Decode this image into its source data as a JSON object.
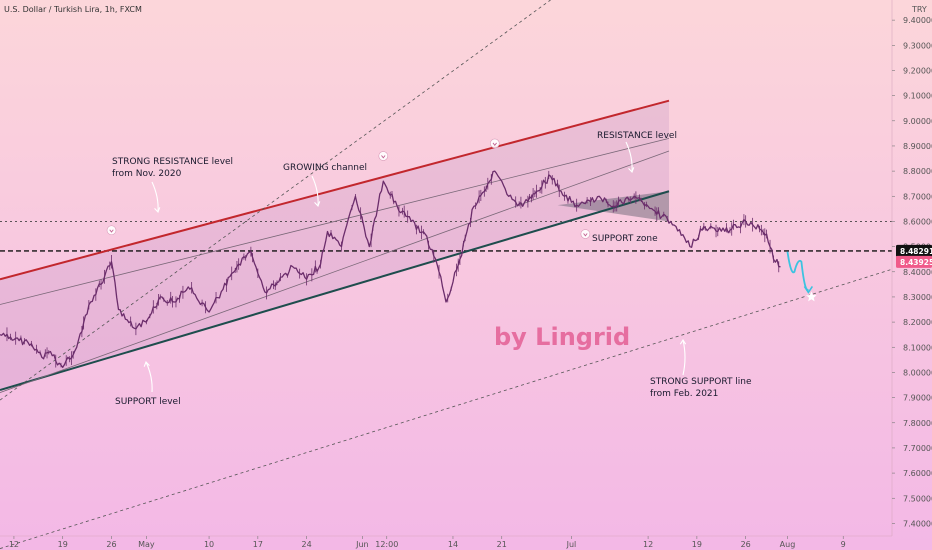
{
  "chart_data": {
    "type": "line",
    "title": "U.S. Dollar / Turkish Lira, 1h, FXCM",
    "currency": "TRY",
    "ylim": [
      7.35,
      9.48
    ],
    "yticks": [
      7.4,
      7.5,
      7.6,
      7.7,
      7.8,
      7.9,
      8.0,
      8.1,
      8.2,
      8.3,
      8.4,
      8.5,
      8.6,
      8.7,
      8.8,
      8.9,
      9.0,
      9.1,
      9.2,
      9.3,
      9.4
    ],
    "ytick_labels": [
      "7.40000",
      "7.50000",
      "7.60000",
      "7.70000",
      "7.80000",
      "7.90000",
      "8.00000",
      "8.10000",
      "8.20000",
      "8.30000",
      "8.40000",
      "8.50000",
      "8.60000",
      "8.70000",
      "8.80000",
      "8.90000",
      "9.00000",
      "9.10000",
      "9.20000",
      "9.30000",
      "9.40000"
    ],
    "xlim": [
      "2021-04-10",
      "2021-08-16"
    ],
    "xticks": [
      {
        "date": "2021-04-12",
        "label": "12"
      },
      {
        "date": "2021-04-19",
        "label": "19"
      },
      {
        "date": "2021-04-26",
        "label": "26"
      },
      {
        "date": "2021-05-01",
        "label": "May"
      },
      {
        "date": "2021-05-10",
        "label": "10"
      },
      {
        "date": "2021-05-17",
        "label": "17"
      },
      {
        "date": "2021-05-24",
        "label": "24"
      },
      {
        "date": "2021-06-01",
        "label": "Jun"
      },
      {
        "date": "2021-06-04T12:00",
        "label": "12:00"
      },
      {
        "date": "2021-06-14",
        "label": "14"
      },
      {
        "date": "2021-06-21",
        "label": "21"
      },
      {
        "date": "2021-07-01",
        "label": "Jul"
      },
      {
        "date": "2021-07-12",
        "label": "12"
      },
      {
        "date": "2021-07-19",
        "label": "19"
      },
      {
        "date": "2021-07-26",
        "label": "26"
      },
      {
        "date": "2021-08-01",
        "label": "Aug"
      },
      {
        "date": "2021-08-09",
        "label": "9"
      }
    ],
    "series": [
      {
        "values": [
          {
            "x": "2021-04-10",
            "y": 8.15
          },
          {
            "x": "2021-04-12",
            "y": 8.13
          },
          {
            "x": "2021-04-14",
            "y": 8.12
          },
          {
            "x": "2021-04-16",
            "y": 8.06
          },
          {
            "x": "2021-04-17",
            "y": 8.08
          },
          {
            "x": "2021-04-19",
            "y": 8.02
          },
          {
            "x": "2021-04-21",
            "y": 8.1
          },
          {
            "x": "2021-04-23",
            "y": 8.28
          },
          {
            "x": "2021-04-25",
            "y": 8.38
          },
          {
            "x": "2021-04-26",
            "y": 8.44
          },
          {
            "x": "2021-04-27",
            "y": 8.25
          },
          {
            "x": "2021-04-29",
            "y": 8.18
          },
          {
            "x": "2021-05-01",
            "y": 8.2
          },
          {
            "x": "2021-05-03",
            "y": 8.3
          },
          {
            "x": "2021-05-05",
            "y": 8.28
          },
          {
            "x": "2021-05-07",
            "y": 8.34
          },
          {
            "x": "2021-05-10",
            "y": 8.24
          },
          {
            "x": "2021-05-12",
            "y": 8.33
          },
          {
            "x": "2021-05-14",
            "y": 8.42
          },
          {
            "x": "2021-05-16",
            "y": 8.48
          },
          {
            "x": "2021-05-18",
            "y": 8.32
          },
          {
            "x": "2021-05-20",
            "y": 8.36
          },
          {
            "x": "2021-05-22",
            "y": 8.42
          },
          {
            "x": "2021-05-24",
            "y": 8.37
          },
          {
            "x": "2021-05-26",
            "y": 8.43
          },
          {
            "x": "2021-05-27",
            "y": 8.56
          },
          {
            "x": "2021-05-29",
            "y": 8.5
          },
          {
            "x": "2021-05-31",
            "y": 8.7
          },
          {
            "x": "2021-06-02",
            "y": 8.5
          },
          {
            "x": "2021-06-04",
            "y": 8.76
          },
          {
            "x": "2021-06-06",
            "y": 8.66
          },
          {
            "x": "2021-06-08",
            "y": 8.6
          },
          {
            "x": "2021-06-10",
            "y": 8.55
          },
          {
            "x": "2021-06-12",
            "y": 8.4
          },
          {
            "x": "2021-06-13",
            "y": 8.28
          },
          {
            "x": "2021-06-15",
            "y": 8.45
          },
          {
            "x": "2021-06-17",
            "y": 8.66
          },
          {
            "x": "2021-06-19",
            "y": 8.75
          },
          {
            "x": "2021-06-20",
            "y": 8.8
          },
          {
            "x": "2021-06-22",
            "y": 8.7
          },
          {
            "x": "2021-06-24",
            "y": 8.66
          },
          {
            "x": "2021-06-26",
            "y": 8.72
          },
          {
            "x": "2021-06-28",
            "y": 8.78
          },
          {
            "x": "2021-06-30",
            "y": 8.7
          },
          {
            "x": "2021-07-02",
            "y": 8.66
          },
          {
            "x": "2021-07-05",
            "y": 8.7
          },
          {
            "x": "2021-07-07",
            "y": 8.66
          },
          {
            "x": "2021-07-10",
            "y": 8.7
          },
          {
            "x": "2021-07-12",
            "y": 8.66
          },
          {
            "x": "2021-07-14",
            "y": 8.62
          },
          {
            "x": "2021-07-16",
            "y": 8.58
          },
          {
            "x": "2021-07-18",
            "y": 8.5
          },
          {
            "x": "2021-07-20",
            "y": 8.58
          },
          {
            "x": "2021-07-22",
            "y": 8.56
          },
          {
            "x": "2021-07-24",
            "y": 8.57
          },
          {
            "x": "2021-07-26",
            "y": 8.6
          },
          {
            "x": "2021-07-28",
            "y": 8.57
          },
          {
            "x": "2021-07-29",
            "y": 8.55
          },
          {
            "x": "2021-07-30",
            "y": 8.45
          },
          {
            "x": "2021-07-31",
            "y": 8.42
          }
        ]
      }
    ],
    "projection": [
      {
        "x": "2021-08-01",
        "y": 8.48
      },
      {
        "x": "2021-08-02",
        "y": 8.4
      },
      {
        "x": "2021-08-03",
        "y": 8.44
      },
      {
        "x": "2021-08-04",
        "y": 8.33
      }
    ],
    "levels": [
      {
        "value": 8.6,
        "style": "dotted"
      },
      {
        "value": 8.48291,
        "style": "dashed",
        "label": "8.48291"
      },
      {
        "value": 8.43925,
        "label": "8.43925"
      }
    ],
    "lines": [
      {
        "from": {
          "x": "2021-04-10",
          "y": 8.37
        },
        "to": {
          "x": "2021-07-15",
          "y": 9.08
        },
        "color": "#c2272d"
      },
      {
        "from": {
          "x": "2021-04-10",
          "y": 7.93
        },
        "to": {
          "x": "2021-07-15",
          "y": 8.72
        },
        "color": "#1e4d4d"
      },
      {
        "from": {
          "x": "2021-04-10",
          "y": 8.27
        },
        "to": {
          "x": "2021-07-15",
          "y": 8.93
        },
        "color": "#7a6878"
      },
      {
        "from": {
          "x": "2021-04-10",
          "y": 7.92
        },
        "to": {
          "x": "2021-07-15",
          "y": 8.88
        },
        "color": "#7a6878"
      },
      {
        "from": {
          "x": "2021-04-10",
          "y": 7.89
        },
        "to": {
          "x": "2021-06-28",
          "y": 9.48
        },
        "color": "#555",
        "style": "dotted"
      },
      {
        "from": {
          "x": "2021-04-10",
          "y": 7.3
        },
        "to": {
          "x": "2021-08-16",
          "y": 8.41
        },
        "color": "#555",
        "style": "dotted"
      }
    ],
    "annotations": [
      {
        "text": "STRONG RESISTANCE level",
        "line2": "from Nov. 2020"
      },
      {
        "text": "GROWING channel"
      },
      {
        "text": "RESISTANCE level"
      },
      {
        "text": "SUPPORT zone"
      },
      {
        "text": "SUPPORT level"
      },
      {
        "text": "STRONG SUPPORT line",
        "line2": "from Feb. 2021"
      }
    ],
    "watermark": "by Lingrid",
    "colors": {
      "bg_top": "#fcd6da",
      "bg_bottom": "#f3b8e6",
      "price": "#6b2d6b",
      "resistance": "#c2272d",
      "support": "#1e4d4d",
      "watermark": "#e0528a",
      "projection": "#3cc3e0",
      "current_price_bg": "#f05a8a"
    }
  }
}
